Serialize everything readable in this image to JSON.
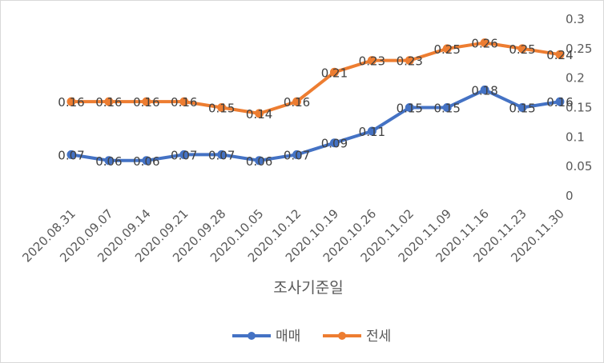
{
  "chart_data": {
    "type": "line",
    "title": "",
    "xlabel": "조사기준일",
    "ylabel": "",
    "ylim": [
      0,
      0.3
    ],
    "yticks": [
      "0",
      "0.05",
      "0.1",
      "0.15",
      "0.2",
      "0.25",
      "0.3"
    ],
    "y_axis_side": "right",
    "categories": [
      "2020.08.31",
      "2020.09.07",
      "2020.09.14",
      "2020.09.21",
      "2020.09.28",
      "2020.10.05",
      "2020.10.12",
      "2020.10.19",
      "2020.10.26",
      "2020.11.02",
      "2020.11.09",
      "2020.11.16",
      "2020.11.23",
      "2020.11.30"
    ],
    "series": [
      {
        "name": "매매",
        "color": "#4472c4",
        "values": [
          0.07,
          0.06,
          0.06,
          0.07,
          0.07,
          0.06,
          0.07,
          0.09,
          0.11,
          0.15,
          0.15,
          0.18,
          0.15,
          0.16
        ],
        "labels": [
          "0.07",
          "0.06",
          "0.06",
          "0.07",
          "0.07",
          "0.06",
          "0.07",
          "0.09",
          "0.11",
          "0.15",
          "0.15",
          "0.18",
          "0.15",
          "0.16"
        ]
      },
      {
        "name": "전세",
        "color": "#ed7d31",
        "values": [
          0.16,
          0.16,
          0.16,
          0.16,
          0.15,
          0.14,
          0.16,
          0.21,
          0.23,
          0.23,
          0.25,
          0.26,
          0.25,
          0.24
        ],
        "labels": [
          "0.16",
          "0.16",
          "0.16",
          "0.16",
          "0.15",
          "0.14",
          "0.16",
          "0.21",
          "0.23",
          "0.23",
          "0.25",
          "0.26",
          "0.25",
          "0.24"
        ]
      }
    ],
    "legend": "bottom"
  }
}
